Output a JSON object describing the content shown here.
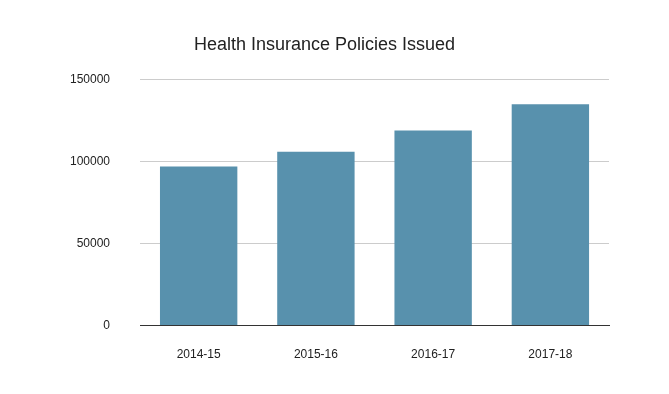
{
  "chart_data": {
    "type": "bar",
    "title": "Health Insurance Policies Issued",
    "categories": [
      "2014-15",
      "2015-16",
      "2016-17",
      "2017-18"
    ],
    "values": [
      97000,
      106000,
      119000,
      135000
    ],
    "color": "#5891ad",
    "ylim": [
      0,
      150000
    ],
    "yticks": [
      0,
      50000,
      100000,
      150000
    ],
    "grid": true
  }
}
